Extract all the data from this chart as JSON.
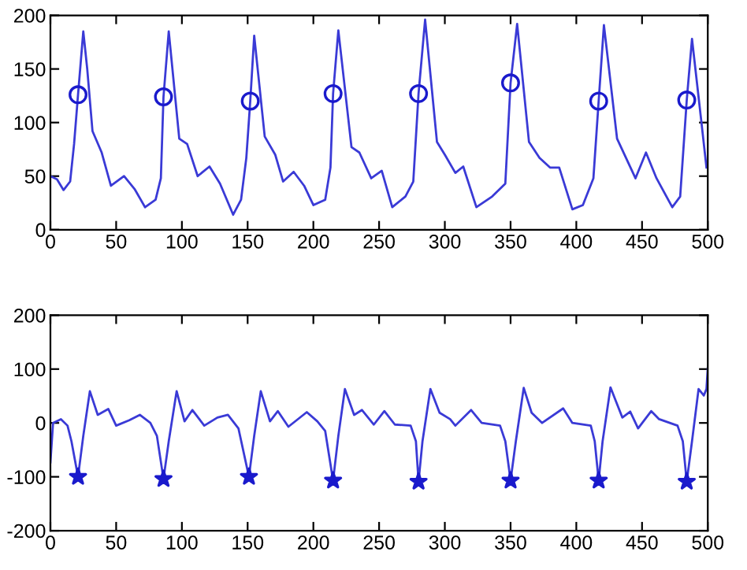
{
  "chart_data": [
    {
      "type": "line",
      "xlim": [
        0,
        500
      ],
      "ylim": [
        0,
        200
      ],
      "xticks": [
        0,
        50,
        100,
        150,
        200,
        250,
        300,
        350,
        400,
        450,
        500
      ],
      "yticks": [
        0,
        50,
        100,
        150,
        200
      ],
      "series": [
        {
          "color": "#3a3ad6",
          "marker": "none",
          "line_style": "solid",
          "x": [
            0,
            5,
            10,
            15,
            18,
            21,
            25,
            28,
            32,
            39,
            46,
            56,
            64,
            72,
            80,
            84,
            86,
            90,
            98,
            104,
            112,
            121,
            129,
            139,
            145,
            149,
            152,
            155,
            163,
            171,
            177,
            185,
            193,
            200,
            209,
            213,
            215,
            219,
            229,
            235,
            244,
            252,
            260,
            270,
            276,
            280,
            285,
            294,
            300,
            308,
            314,
            324,
            336,
            346,
            350,
            355,
            364,
            372,
            380,
            387,
            397,
            405,
            413,
            417,
            421,
            431,
            445,
            453,
            461,
            473,
            479,
            484,
            488,
            495,
            499
          ],
          "values": [
            50,
            47,
            37,
            45,
            80,
            126,
            185,
            150,
            92,
            72,
            41,
            50,
            38,
            21,
            28,
            48,
            124,
            185,
            85,
            80,
            50,
            59,
            43,
            14,
            28,
            67,
            120,
            181,
            87,
            70,
            45,
            54,
            41,
            23,
            28,
            58,
            127,
            186,
            77,
            72,
            48,
            55,
            21,
            31,
            45,
            127,
            196,
            82,
            70,
            53,
            59,
            21,
            31,
            43,
            137,
            192,
            82,
            67,
            58,
            58,
            19,
            23,
            48,
            120,
            191,
            85,
            48,
            72,
            48,
            21,
            31,
            121,
            178,
            102,
            58
          ]
        },
        {
          "type": "scatter",
          "color": "#1a1acc",
          "marker": "circle",
          "x": [
            21,
            86,
            152,
            215,
            280,
            350,
            417,
            484
          ],
          "values": [
            126,
            124,
            120,
            127,
            127,
            137,
            120,
            121
          ]
        }
      ]
    },
    {
      "type": "line",
      "xlim": [
        0,
        500
      ],
      "ylim": [
        -200,
        200
      ],
      "xticks": [
        0,
        50,
        100,
        150,
        200,
        250,
        300,
        350,
        400,
        450,
        500
      ],
      "yticks": [
        -200,
        -100,
        0,
        100,
        200
      ],
      "series": [
        {
          "color": "#3a3ad6",
          "marker": "none",
          "line_style": "solid",
          "x": [
            0,
            2,
            8,
            13,
            16,
            21,
            25,
            30,
            36,
            44,
            50,
            60,
            68,
            76,
            81,
            86,
            90,
            96,
            102,
            108,
            117,
            127,
            135,
            143,
            151,
            155,
            160,
            167,
            173,
            181,
            195,
            203,
            209,
            215,
            219,
            224,
            231,
            237,
            246,
            254,
            262,
            274,
            278,
            280,
            283,
            289,
            296,
            304,
            308,
            320,
            328,
            342,
            346,
            350,
            354,
            360,
            366,
            374,
            390,
            397,
            411,
            414,
            417,
            420,
            426,
            435,
            441,
            447,
            457,
            463,
            477,
            481,
            484,
            488,
            493,
            497,
            499,
            500
          ],
          "values": [
            -73,
            0,
            7,
            -5,
            -34,
            -100,
            -24,
            59,
            15,
            26,
            -5,
            5,
            15,
            0,
            -24,
            -104,
            -34,
            59,
            3,
            24,
            -5,
            10,
            15,
            -10,
            -100,
            -24,
            59,
            3,
            22,
            -7,
            20,
            3,
            -15,
            -107,
            -24,
            63,
            15,
            24,
            -3,
            22,
            -3,
            -5,
            -34,
            -109,
            -34,
            63,
            19,
            7,
            -5,
            24,
            0,
            -5,
            -34,
            -107,
            -34,
            65,
            19,
            0,
            27,
            0,
            -5,
            -34,
            -107,
            -34,
            66,
            10,
            21,
            -10,
            22,
            7,
            -5,
            -34,
            -109,
            -34,
            63,
            51,
            63,
            102
          ]
        },
        {
          "type": "scatter",
          "color": "#1a1acc",
          "marker": "star",
          "x": [
            21,
            86,
            151,
            215,
            280,
            350,
            417,
            484
          ],
          "values": [
            -100,
            -104,
            -100,
            -107,
            -109,
            -107,
            -107,
            -109
          ]
        }
      ]
    }
  ]
}
